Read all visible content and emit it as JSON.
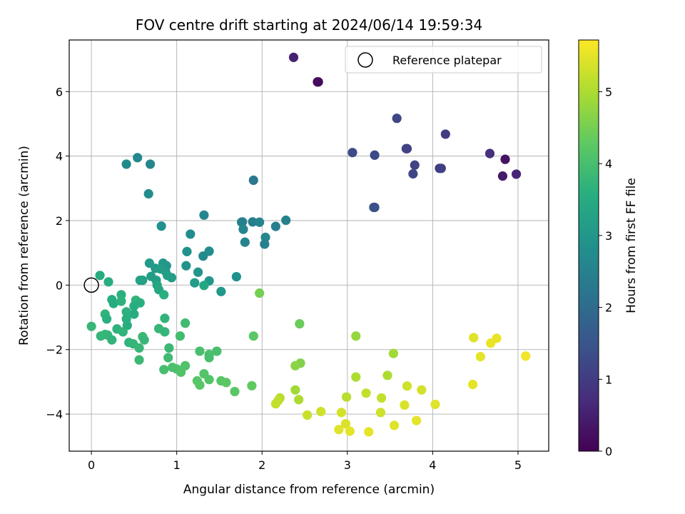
{
  "chart_data": {
    "type": "scatter",
    "title": "FOV centre drift starting at 2024/06/14 19:59:34",
    "xlabel": "Angular distance from reference (arcmin)",
    "ylabel": "Rotation from reference (arcmin)",
    "xlim": [
      -0.26,
      5.36
    ],
    "ylim": [
      -5.15,
      7.6
    ],
    "xticks": [
      "0",
      "1",
      "2",
      "3",
      "4",
      "5"
    ],
    "yticks": [
      "−4",
      "−2",
      "0",
      "2",
      "4",
      "6"
    ],
    "grid": true,
    "legend": {
      "position": "top-right",
      "label": "Reference platepar"
    },
    "colorbar": {
      "label": "Hours from first FF file",
      "range": [
        0,
        5.72
      ],
      "ticks": [
        "0",
        "1",
        "2",
        "3",
        "4",
        "5"
      ],
      "colormap": "viridis"
    },
    "reference_point": {
      "x": 0,
      "y": 0
    },
    "points": [
      {
        "x": 2.37,
        "y": 7.06,
        "c": 0.55
      },
      {
        "x": 2.65,
        "y": 6.3,
        "c": 0.15
      },
      {
        "x": 2.66,
        "y": 6.3,
        "c": 0.17
      },
      {
        "x": 3.58,
        "y": 5.17,
        "c": 1.2
      },
      {
        "x": 4.15,
        "y": 4.68,
        "c": 1.0
      },
      {
        "x": 3.06,
        "y": 4.11,
        "c": 1.3
      },
      {
        "x": 3.32,
        "y": 4.03,
        "c": 1.25
      },
      {
        "x": 3.69,
        "y": 4.23,
        "c": 1.1
      },
      {
        "x": 3.7,
        "y": 4.23,
        "c": 1.12
      },
      {
        "x": 4.67,
        "y": 4.08,
        "c": 0.8
      },
      {
        "x": 4.85,
        "y": 3.9,
        "c": 0.3
      },
      {
        "x": 3.79,
        "y": 3.72,
        "c": 1.15
      },
      {
        "x": 3.77,
        "y": 3.45,
        "c": 1.2
      },
      {
        "x": 4.08,
        "y": 3.62,
        "c": 1.05
      },
      {
        "x": 4.1,
        "y": 3.62,
        "c": 1.07
      },
      {
        "x": 4.82,
        "y": 3.38,
        "c": 0.4
      },
      {
        "x": 4.98,
        "y": 3.44,
        "c": 0.6
      },
      {
        "x": 3.31,
        "y": 2.41,
        "c": 1.4
      },
      {
        "x": 3.32,
        "y": 2.41,
        "c": 1.42
      },
      {
        "x": 0.41,
        "y": 3.75,
        "c": 2.7
      },
      {
        "x": 0.54,
        "y": 3.95,
        "c": 2.65
      },
      {
        "x": 0.69,
        "y": 3.75,
        "c": 2.6
      },
      {
        "x": 0.67,
        "y": 2.83,
        "c": 2.75
      },
      {
        "x": 1.9,
        "y": 3.25,
        "c": 2.3
      },
      {
        "x": 1.32,
        "y": 2.17,
        "c": 2.6
      },
      {
        "x": 2.28,
        "y": 2.01,
        "c": 2.5
      },
      {
        "x": 0.82,
        "y": 1.83,
        "c": 2.85
      },
      {
        "x": 1.76,
        "y": 1.95,
        "c": 2.45
      },
      {
        "x": 1.77,
        "y": 1.96,
        "c": 2.5
      },
      {
        "x": 1.89,
        "y": 1.96,
        "c": 2.4
      },
      {
        "x": 1.97,
        "y": 1.95,
        "c": 2.55
      },
      {
        "x": 2.16,
        "y": 1.82,
        "c": 2.45
      },
      {
        "x": 1.78,
        "y": 1.73,
        "c": 2.6
      },
      {
        "x": 1.16,
        "y": 1.58,
        "c": 2.8
      },
      {
        "x": 2.04,
        "y": 1.48,
        "c": 2.6
      },
      {
        "x": 1.8,
        "y": 1.33,
        "c": 2.55
      },
      {
        "x": 2.03,
        "y": 1.27,
        "c": 2.5
      },
      {
        "x": 1.12,
        "y": 1.04,
        "c": 2.85
      },
      {
        "x": 1.38,
        "y": 1.05,
        "c": 2.75
      },
      {
        "x": 1.31,
        "y": 0.9,
        "c": 2.7
      },
      {
        "x": 0.68,
        "y": 0.68,
        "c": 3.1
      },
      {
        "x": 0.84,
        "y": 0.68,
        "c": 3.05
      },
      {
        "x": 0.88,
        "y": 0.6,
        "c": 3.0
      },
      {
        "x": 1.11,
        "y": 0.6,
        "c": 2.9
      },
      {
        "x": 0.75,
        "y": 0.52,
        "c": 3.1
      },
      {
        "x": 0.81,
        "y": 0.5,
        "c": 3.15
      },
      {
        "x": 0.87,
        "y": 0.42,
        "c": 3.1
      },
      {
        "x": 1.25,
        "y": 0.4,
        "c": 2.95
      },
      {
        "x": 0.7,
        "y": 0.27,
        "c": 3.15
      },
      {
        "x": 0.89,
        "y": 0.3,
        "c": 3.2
      },
      {
        "x": 0.94,
        "y": 0.23,
        "c": 3.2
      },
      {
        "x": 1.7,
        "y": 0.26,
        "c": 2.85
      },
      {
        "x": 0.57,
        "y": 0.15,
        "c": 3.3
      },
      {
        "x": 0.6,
        "y": 0.15,
        "c": 3.25
      },
      {
        "x": 0.76,
        "y": 0.15,
        "c": 3.2
      },
      {
        "x": 1.21,
        "y": 0.07,
        "c": 3.1
      },
      {
        "x": 1.38,
        "y": 0.13,
        "c": 3.0
      },
      {
        "x": 0.77,
        "y": 0.0,
        "c": 3.3
      },
      {
        "x": 1.32,
        "y": -0.01,
        "c": 3.4
      },
      {
        "x": 1.52,
        "y": -0.2,
        "c": 3.0
      },
      {
        "x": 0.79,
        "y": -0.14,
        "c": 3.4
      },
      {
        "x": 0.1,
        "y": 0.3,
        "c": 3.5
      },
      {
        "x": 0.2,
        "y": 0.1,
        "c": 3.55
      },
      {
        "x": 0.85,
        "y": -0.3,
        "c": 3.6
      },
      {
        "x": 0.35,
        "y": -0.3,
        "c": 3.6
      },
      {
        "x": 0.24,
        "y": -0.45,
        "c": 3.55
      },
      {
        "x": 0.26,
        "y": -0.57,
        "c": 3.5
      },
      {
        "x": 0.35,
        "y": -0.5,
        "c": 3.65
      },
      {
        "x": 0.52,
        "y": -0.47,
        "c": 3.7
      },
      {
        "x": 0.57,
        "y": -0.55,
        "c": 3.6
      },
      {
        "x": 0.5,
        "y": -0.65,
        "c": 3.55
      },
      {
        "x": 0.41,
        "y": -0.83,
        "c": 3.65
      },
      {
        "x": 0.5,
        "y": -0.9,
        "c": 3.5
      },
      {
        "x": 0.16,
        "y": -0.9,
        "c": 3.7
      },
      {
        "x": 0.18,
        "y": -1.05,
        "c": 3.6
      },
      {
        "x": 0.41,
        "y": -1.05,
        "c": 3.6
      },
      {
        "x": 0.42,
        "y": -1.25,
        "c": 3.55
      },
      {
        "x": 0.86,
        "y": -1.03,
        "c": 3.7
      },
      {
        "x": 0.3,
        "y": -1.36,
        "c": 3.65
      },
      {
        "x": 0.37,
        "y": -1.45,
        "c": 3.7
      },
      {
        "x": 0.0,
        "y": -1.28,
        "c": 3.8
      },
      {
        "x": 0.79,
        "y": -1.35,
        "c": 3.8
      },
      {
        "x": 0.86,
        "y": -1.45,
        "c": 3.75
      },
      {
        "x": 0.11,
        "y": -1.58,
        "c": 3.75
      },
      {
        "x": 0.16,
        "y": -1.53,
        "c": 3.8
      },
      {
        "x": 0.19,
        "y": -1.55,
        "c": 3.75
      },
      {
        "x": 0.24,
        "y": -1.7,
        "c": 3.7
      },
      {
        "x": 0.6,
        "y": -1.6,
        "c": 3.85
      },
      {
        "x": 0.62,
        "y": -1.7,
        "c": 3.8
      },
      {
        "x": 0.44,
        "y": -1.78,
        "c": 3.7
      },
      {
        "x": 0.49,
        "y": -1.82,
        "c": 3.75
      },
      {
        "x": 0.56,
        "y": -1.95,
        "c": 3.8
      },
      {
        "x": 0.91,
        "y": -1.95,
        "c": 3.85
      },
      {
        "x": 0.9,
        "y": -2.25,
        "c": 3.9
      },
      {
        "x": 0.56,
        "y": -2.32,
        "c": 3.85
      },
      {
        "x": 1.1,
        "y": -1.18,
        "c": 3.9
      },
      {
        "x": 1.04,
        "y": -1.58,
        "c": 3.95
      },
      {
        "x": 1.27,
        "y": -2.05,
        "c": 4.0
      },
      {
        "x": 1.38,
        "y": -2.15,
        "c": 4.05
      },
      {
        "x": 1.47,
        "y": -2.05,
        "c": 4.0
      },
      {
        "x": 1.38,
        "y": -2.25,
        "c": 4.0
      },
      {
        "x": 0.85,
        "y": -2.62,
        "c": 4.0
      },
      {
        "x": 0.95,
        "y": -2.55,
        "c": 4.05
      },
      {
        "x": 1.0,
        "y": -2.6,
        "c": 4.05
      },
      {
        "x": 1.05,
        "y": -2.7,
        "c": 4.1
      },
      {
        "x": 1.1,
        "y": -2.5,
        "c": 4.1
      },
      {
        "x": 1.32,
        "y": -2.75,
        "c": 4.15
      },
      {
        "x": 1.24,
        "y": -2.97,
        "c": 4.2
      },
      {
        "x": 1.27,
        "y": -3.1,
        "c": 4.2
      },
      {
        "x": 1.38,
        "y": -2.93,
        "c": 4.15
      },
      {
        "x": 1.52,
        "y": -2.97,
        "c": 4.2
      },
      {
        "x": 1.58,
        "y": -3.02,
        "c": 4.25
      },
      {
        "x": 1.68,
        "y": -3.3,
        "c": 4.25
      },
      {
        "x": 1.88,
        "y": -3.12,
        "c": 4.3
      },
      {
        "x": 1.9,
        "y": -1.58,
        "c": 4.25
      },
      {
        "x": 1.97,
        "y": -0.25,
        "c": 4.5
      },
      {
        "x": 2.44,
        "y": -1.2,
        "c": 4.4
      },
      {
        "x": 2.45,
        "y": -2.42,
        "c": 4.6
      },
      {
        "x": 2.39,
        "y": -2.5,
        "c": 4.7
      },
      {
        "x": 2.39,
        "y": -3.25,
        "c": 4.9
      },
      {
        "x": 2.43,
        "y": -3.55,
        "c": 5.0
      },
      {
        "x": 2.21,
        "y": -3.5,
        "c": 5.1
      },
      {
        "x": 2.19,
        "y": -3.58,
        "c": 5.15
      },
      {
        "x": 2.16,
        "y": -3.68,
        "c": 5.2
      },
      {
        "x": 2.53,
        "y": -4.03,
        "c": 5.25
      },
      {
        "x": 2.69,
        "y": -3.92,
        "c": 5.3
      },
      {
        "x": 3.1,
        "y": -1.58,
        "c": 4.8
      },
      {
        "x": 3.1,
        "y": -2.85,
        "c": 5.0
      },
      {
        "x": 3.47,
        "y": -2.8,
        "c": 5.0
      },
      {
        "x": 3.54,
        "y": -2.12,
        "c": 4.9
      },
      {
        "x": 2.99,
        "y": -3.47,
        "c": 5.1
      },
      {
        "x": 3.22,
        "y": -3.35,
        "c": 5.2
      },
      {
        "x": 3.4,
        "y": -3.5,
        "c": 5.2
      },
      {
        "x": 3.39,
        "y": -3.95,
        "c": 5.3
      },
      {
        "x": 2.93,
        "y": -3.95,
        "c": 5.35
      },
      {
        "x": 2.98,
        "y": -4.3,
        "c": 5.4
      },
      {
        "x": 2.9,
        "y": -4.48,
        "c": 5.45
      },
      {
        "x": 3.03,
        "y": -4.53,
        "c": 5.5
      },
      {
        "x": 3.25,
        "y": -4.55,
        "c": 5.5
      },
      {
        "x": 3.55,
        "y": -4.35,
        "c": 5.45
      },
      {
        "x": 3.7,
        "y": -3.13,
        "c": 5.3
      },
      {
        "x": 3.67,
        "y": -3.72,
        "c": 5.4
      },
      {
        "x": 3.87,
        "y": -3.25,
        "c": 5.35
      },
      {
        "x": 3.81,
        "y": -4.2,
        "c": 5.5
      },
      {
        "x": 4.03,
        "y": -3.7,
        "c": 5.45
      },
      {
        "x": 4.47,
        "y": -3.08,
        "c": 5.5
      },
      {
        "x": 4.48,
        "y": -1.63,
        "c": 5.45
      },
      {
        "x": 4.56,
        "y": -2.22,
        "c": 5.5
      },
      {
        "x": 4.68,
        "y": -1.8,
        "c": 5.55
      },
      {
        "x": 4.75,
        "y": -1.65,
        "c": 5.55
      },
      {
        "x": 5.09,
        "y": -2.2,
        "c": 5.6
      }
    ]
  }
}
